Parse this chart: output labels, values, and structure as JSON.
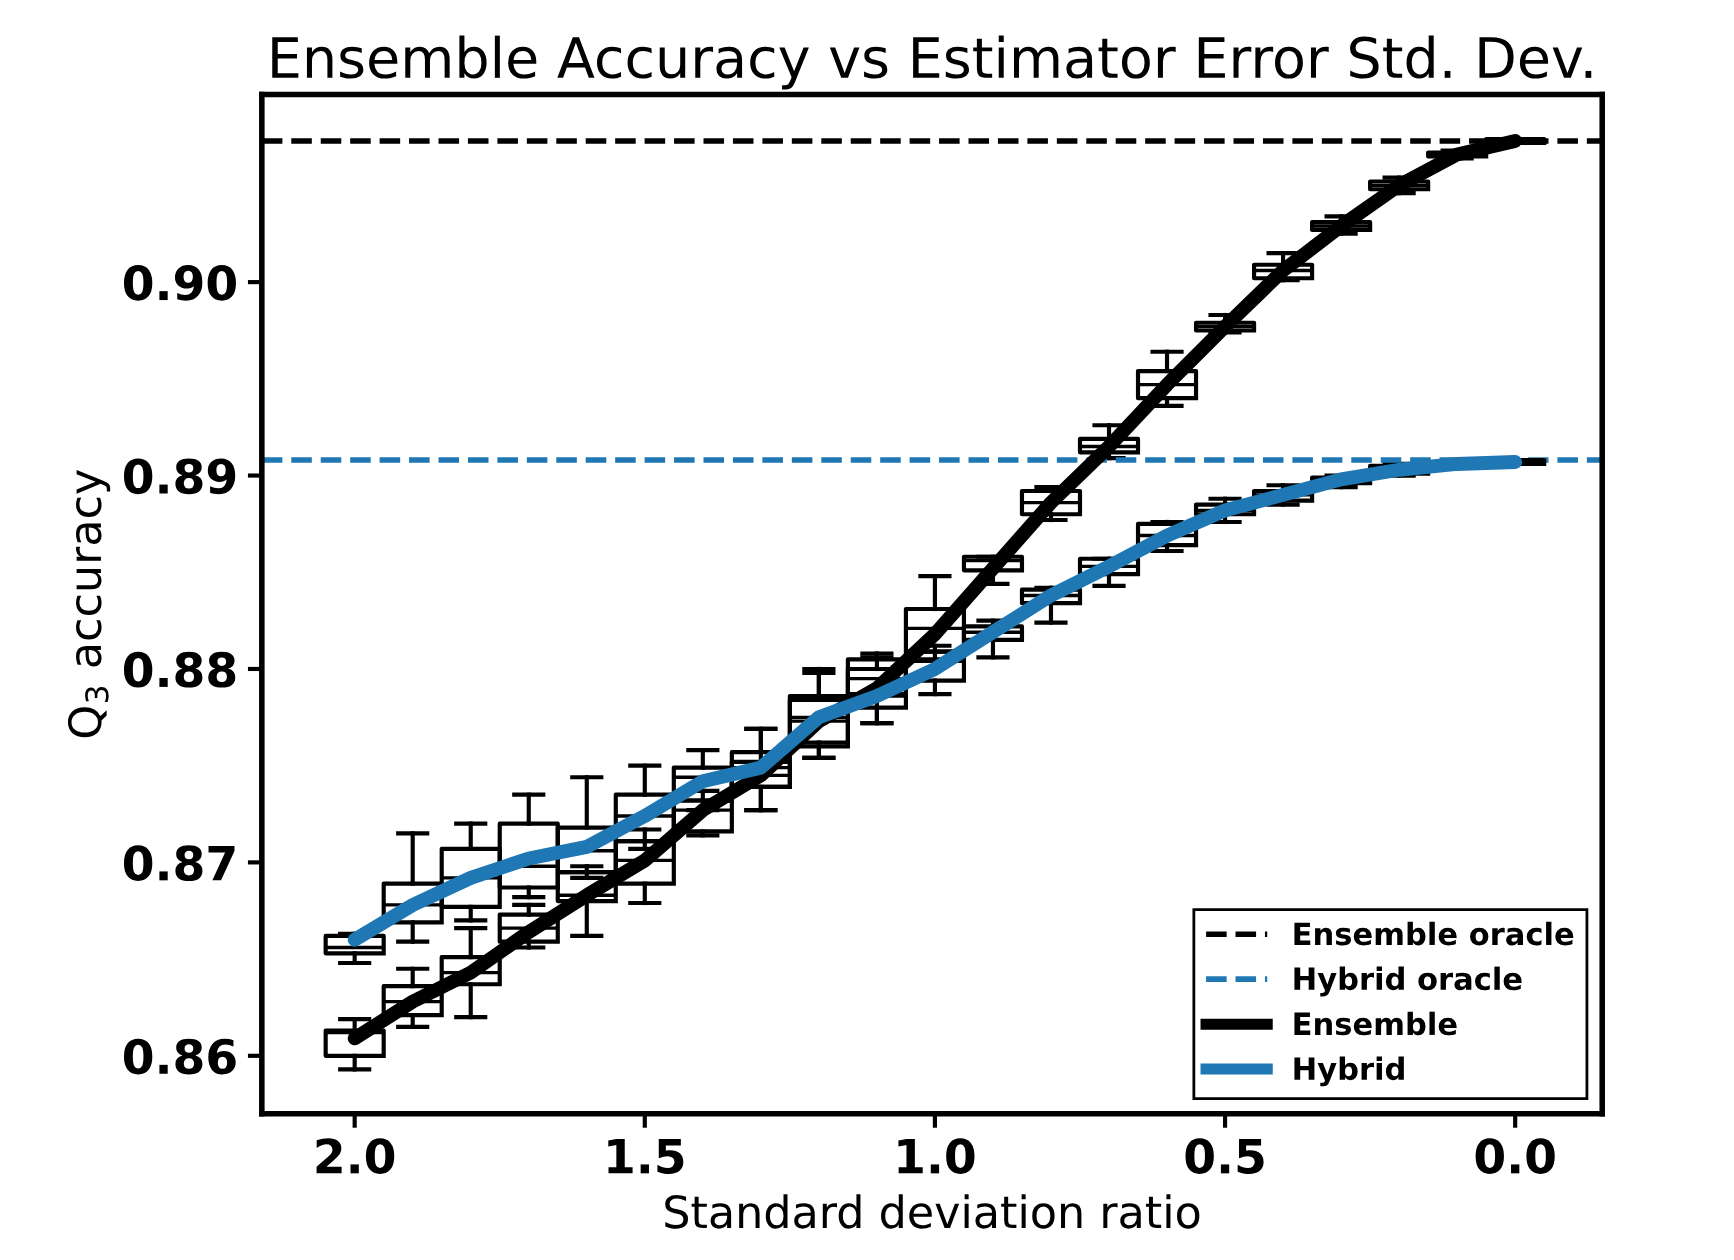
{
  "chart_data": {
    "type": "box",
    "title": "Ensemble Accuracy vs Estimator Error Std. Dev.",
    "xlabel": "Standard deviation ratio",
    "ylabel": "Q$_{3}$ accuracy",
    "x": [
      2.0,
      1.9,
      1.8,
      1.7,
      1.6,
      1.5,
      1.4,
      1.3,
      1.2,
      1.1,
      1.0,
      0.9,
      0.8,
      0.7,
      0.6,
      0.5,
      0.4,
      0.3,
      0.2,
      0.1,
      0.0
    ],
    "xlim": [
      2.16,
      -0.15
    ],
    "ylim": [
      0.857,
      0.9097
    ],
    "xticks": [
      {
        "value": 2.0,
        "label": "2.0"
      },
      {
        "value": 1.5,
        "label": "1.5"
      },
      {
        "value": 1.0,
        "label": "1.0"
      },
      {
        "value": 0.5,
        "label": "0.5"
      },
      {
        "value": 0.0,
        "label": "0.0"
      }
    ],
    "yticks": [
      {
        "value": 0.86,
        "label": "0.86"
      },
      {
        "value": 0.87,
        "label": "0.87"
      },
      {
        "value": 0.88,
        "label": "0.88"
      },
      {
        "value": 0.89,
        "label": "0.89"
      },
      {
        "value": 0.9,
        "label": "0.90"
      }
    ],
    "grid": false,
    "legend": "bottom right",
    "ref_lines": [
      {
        "axis": "y",
        "value": 0.9073,
        "label": "Ensemble oracle",
        "color": "#000000",
        "line_style": "dashed"
      },
      {
        "axis": "y",
        "value": 0.8908,
        "label": "Hybrid oracle",
        "color": "#1f77b4",
        "line_style": "dashed"
      }
    ],
    "series": [
      {
        "color": "#000000",
        "boxes": [
          {
            "low": 0.8593,
            "q1": 0.86,
            "median": 0.8612,
            "q3": 0.8613,
            "high": 0.8619
          },
          {
            "low": 0.8615,
            "q1": 0.8621,
            "median": 0.8628,
            "q3": 0.8636,
            "high": 0.8645
          },
          {
            "low": 0.862,
            "q1": 0.8637,
            "median": 0.8643,
            "q3": 0.8651,
            "high": 0.8666
          },
          {
            "low": 0.8656,
            "q1": 0.8659,
            "median": 0.8666,
            "q3": 0.8673,
            "high": 0.8678
          },
          {
            "low": 0.8662,
            "q1": 0.868,
            "median": 0.8683,
            "q3": 0.8695,
            "high": 0.8698
          },
          {
            "low": 0.8679,
            "q1": 0.8689,
            "median": 0.8701,
            "q3": 0.8711,
            "high": 0.8717
          },
          {
            "low": 0.8714,
            "q1": 0.8716,
            "median": 0.8727,
            "q3": 0.8732,
            "high": 0.8737
          },
          {
            "low": 0.8727,
            "q1": 0.8739,
            "median": 0.8745,
            "q3": 0.8752,
            "high": 0.8769
          },
          {
            "low": 0.8754,
            "q1": 0.876,
            "median": 0.8773,
            "q3": 0.8784,
            "high": 0.8798
          },
          {
            "low": 0.8772,
            "q1": 0.8787,
            "median": 0.8795,
            "q3": 0.8805,
            "high": 0.8808
          },
          {
            "low": 0.8805,
            "q1": 0.8809,
            "median": 0.8821,
            "q3": 0.8831,
            "high": 0.8848
          },
          {
            "low": 0.8844,
            "q1": 0.8851,
            "median": 0.8856,
            "q3": 0.8858,
            "high": 0.8858
          },
          {
            "low": 0.8877,
            "q1": 0.888,
            "median": 0.8886,
            "q3": 0.8892,
            "high": 0.8894
          },
          {
            "low": 0.8909,
            "q1": 0.8912,
            "median": 0.8915,
            "q3": 0.8919,
            "high": 0.8926
          },
          {
            "low": 0.8936,
            "q1": 0.894,
            "median": 0.8947,
            "q3": 0.8954,
            "high": 0.8964
          },
          {
            "low": 0.8974,
            "q1": 0.8975,
            "median": 0.8977,
            "q3": 0.8979,
            "high": 0.8983
          },
          {
            "low": 0.9001,
            "q1": 0.9002,
            "median": 0.9006,
            "q3": 0.9009,
            "high": 0.9015
          },
          {
            "low": 0.9025,
            "q1": 0.9027,
            "median": 0.9029,
            "q3": 0.9031,
            "high": 0.9034
          },
          {
            "low": 0.9046,
            "q1": 0.9048,
            "median": 0.905,
            "q3": 0.9052,
            "high": 0.9054
          },
          {
            "low": 0.9064,
            "q1": 0.9065,
            "median": 0.9066,
            "q3": 0.9067,
            "high": 0.9068
          },
          {
            "low": 0.9072,
            "q1": 0.9072,
            "median": 0.9073,
            "q3": 0.9074,
            "high": 0.9074
          }
        ]
      },
      {
        "color": "#000000",
        "boxes": [
          {
            "low": 0.8648,
            "q1": 0.8653,
            "median": 0.8656,
            "q3": 0.8662,
            "high": 0.8663
          },
          {
            "low": 0.8659,
            "q1": 0.8669,
            "median": 0.8678,
            "q3": 0.8689,
            "high": 0.8715
          },
          {
            "low": 0.867,
            "q1": 0.8677,
            "median": 0.8692,
            "q3": 0.8707,
            "high": 0.872
          },
          {
            "low": 0.8682,
            "q1": 0.8687,
            "median": 0.8698,
            "q3": 0.872,
            "high": 0.8735
          },
          {
            "low": 0.8692,
            "q1": 0.8695,
            "median": 0.8706,
            "q3": 0.8718,
            "high": 0.8744
          },
          {
            "low": 0.8707,
            "q1": 0.8711,
            "median": 0.8724,
            "q3": 0.8735,
            "high": 0.875
          },
          {
            "low": 0.8727,
            "q1": 0.8732,
            "median": 0.8744,
            "q3": 0.8749,
            "high": 0.8758
          },
          {
            "low": 0.8727,
            "q1": 0.8739,
            "median": 0.8749,
            "q3": 0.8757,
            "high": 0.8769
          },
          {
            "low": 0.8754,
            "q1": 0.8762,
            "median": 0.8775,
            "q3": 0.8786,
            "high": 0.88
          },
          {
            "low": 0.8772,
            "q1": 0.878,
            "median": 0.8786,
            "q3": 0.88,
            "high": 0.8806
          },
          {
            "low": 0.8787,
            "q1": 0.8794,
            "median": 0.8804,
            "q3": 0.8809,
            "high": 0.8812
          },
          {
            "low": 0.8806,
            "q1": 0.8815,
            "median": 0.8819,
            "q3": 0.8822,
            "high": 0.8825
          },
          {
            "low": 0.8824,
            "q1": 0.8834,
            "median": 0.8838,
            "q3": 0.8841,
            "high": 0.8842
          },
          {
            "low": 0.8843,
            "q1": 0.8849,
            "median": 0.8853,
            "q3": 0.8857,
            "high": 0.8857
          },
          {
            "low": 0.8861,
            "q1": 0.8864,
            "median": 0.8869,
            "q3": 0.8875,
            "high": 0.8876
          },
          {
            "low": 0.8876,
            "q1": 0.888,
            "median": 0.8882,
            "q3": 0.8885,
            "high": 0.8888
          },
          {
            "low": 0.8885,
            "q1": 0.8887,
            "median": 0.889,
            "q3": 0.8892,
            "high": 0.8895
          },
          {
            "low": 0.8894,
            "q1": 0.8896,
            "median": 0.8898,
            "q3": 0.8899,
            "high": 0.89
          },
          {
            "low": 0.89,
            "q1": 0.8901,
            "median": 0.8903,
            "q3": 0.8905,
            "high": 0.8906
          },
          {
            "low": 0.8904,
            "q1": 0.8905,
            "median": 0.8906,
            "q3": 0.8907,
            "high": 0.8908
          },
          {
            "low": 0.8906,
            "q1": 0.8906,
            "median": 0.8907,
            "q3": 0.8908,
            "high": 0.8908
          }
        ]
      },
      {
        "type": "line",
        "name": "Ensemble",
        "color": "#000000",
        "values": [
          0.8609,
          0.8628,
          0.8643,
          0.8664,
          0.8683,
          0.8701,
          0.8727,
          0.8745,
          0.8773,
          0.879,
          0.8818,
          0.8852,
          0.8886,
          0.8915,
          0.8947,
          0.8977,
          0.9006,
          0.9029,
          0.905,
          0.9066,
          0.9073
        ]
      },
      {
        "type": "line",
        "name": "Hybrid",
        "color": "#1f77b4",
        "values": [
          0.866,
          0.8678,
          0.8692,
          0.8702,
          0.8708,
          0.8724,
          0.8742,
          0.8749,
          0.8775,
          0.8786,
          0.88,
          0.8819,
          0.8838,
          0.8853,
          0.8869,
          0.8882,
          0.889,
          0.8898,
          0.8903,
          0.8906,
          0.8907
        ]
      }
    ]
  }
}
